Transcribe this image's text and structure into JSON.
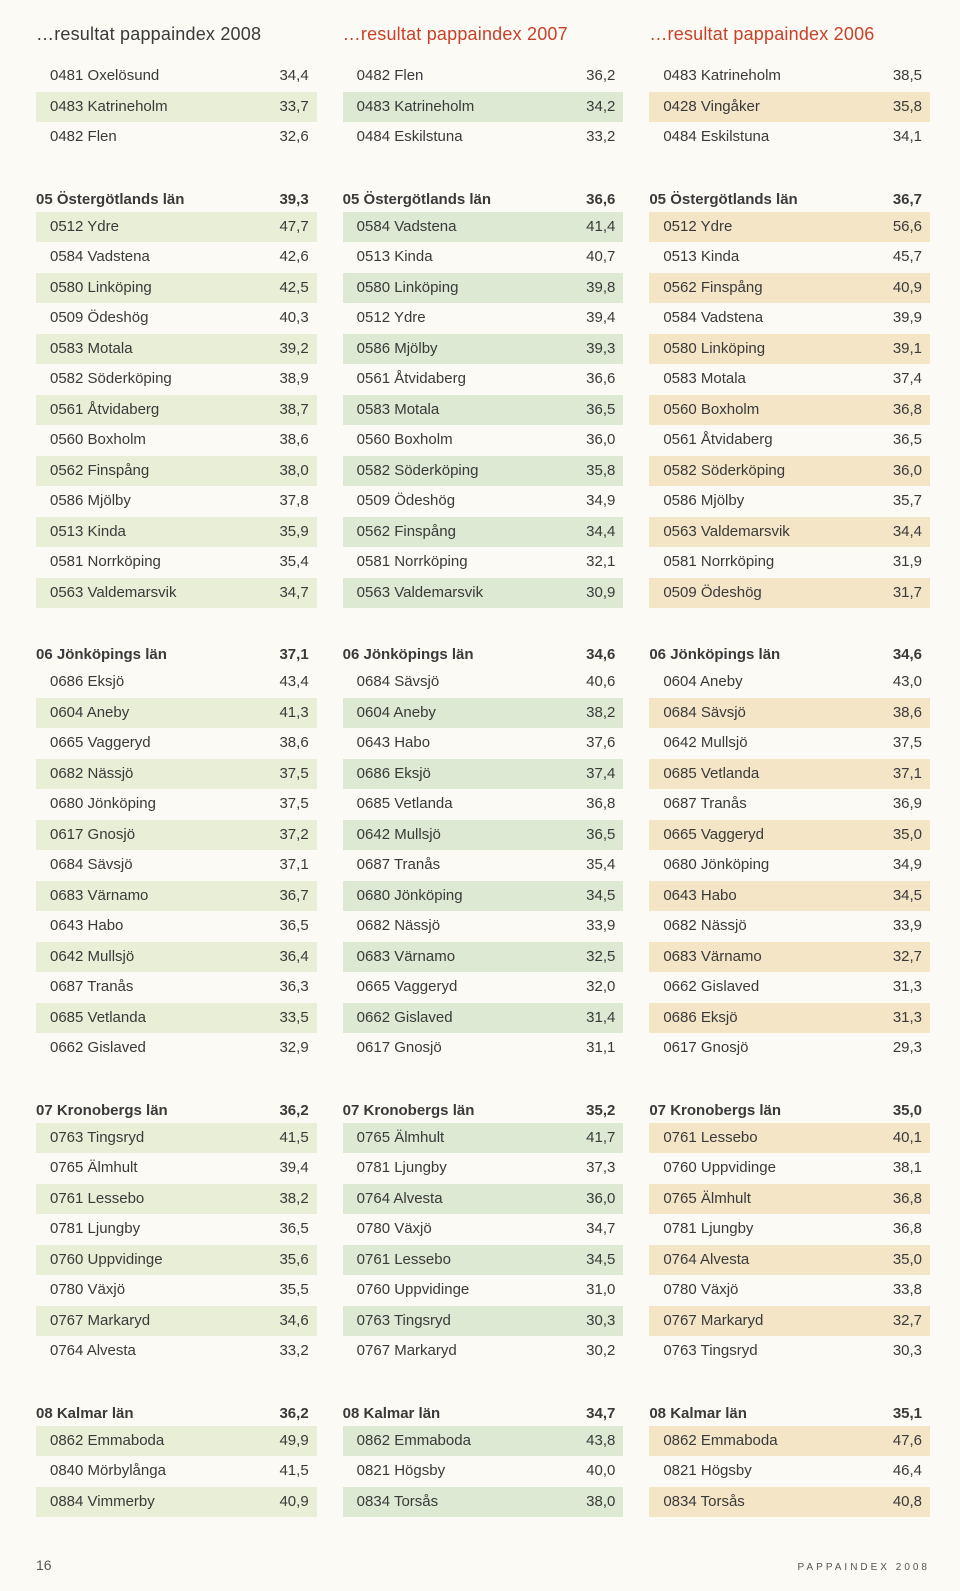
{
  "footer": {
    "page": "16",
    "caption": "pappaindex 2008"
  },
  "columns": [
    {
      "title": "…resultat pappaindex 2008",
      "titleColor": "",
      "blocks": [
        {
          "header": null,
          "rows": [
            {
              "label": "0481 Oxelösund",
              "val": "34,4"
            },
            {
              "label": "0483 Katrineholm",
              "val": "33,7"
            },
            {
              "label": "0482 Flen",
              "val": "32,6"
            }
          ]
        },
        {
          "gap": true
        },
        {
          "header": {
            "label": "05 Östergötlands län",
            "val": "39,3"
          },
          "rows": [
            {
              "label": "0512 Ydre",
              "val": "47,7"
            },
            {
              "label": "0584 Vadstena",
              "val": "42,6"
            },
            {
              "label": "0580 Linköping",
              "val": "42,5"
            },
            {
              "label": "0509 Ödeshög",
              "val": "40,3"
            },
            {
              "label": "0583 Motala",
              "val": "39,2"
            },
            {
              "label": "0582 Söderköping",
              "val": "38,9"
            },
            {
              "label": "0561 Åtvidaberg",
              "val": "38,7"
            },
            {
              "label": "0560 Boxholm",
              "val": "38,6"
            },
            {
              "label": "0562 Finspång",
              "val": "38,0"
            },
            {
              "label": "0586 Mjölby",
              "val": "37,8"
            },
            {
              "label": "0513 Kinda",
              "val": "35,9"
            },
            {
              "label": "0581 Norrköping",
              "val": "35,4"
            },
            {
              "label": "0563 Valdemarsvik",
              "val": "34,7"
            }
          ]
        },
        {
          "gap": true
        },
        {
          "header": {
            "label": "06 Jönköpings län",
            "val": "37,1"
          },
          "rows": [
            {
              "label": "0686 Eksjö",
              "val": "43,4"
            },
            {
              "label": "0604 Aneby",
              "val": "41,3"
            },
            {
              "label": "0665 Vaggeryd",
              "val": "38,6"
            },
            {
              "label": "0682 Nässjö",
              "val": "37,5"
            },
            {
              "label": "0680 Jönköping",
              "val": "37,5"
            },
            {
              "label": "0617 Gnosjö",
              "val": "37,2"
            },
            {
              "label": "0684 Sävsjö",
              "val": "37,1"
            },
            {
              "label": "0683 Värnamo",
              "val": "36,7"
            },
            {
              "label": "0643 Habo",
              "val": "36,5"
            },
            {
              "label": "0642 Mullsjö",
              "val": "36,4"
            },
            {
              "label": "0687 Tranås",
              "val": "36,3"
            },
            {
              "label": "0685 Vetlanda",
              "val": "33,5"
            },
            {
              "label": "0662 Gislaved",
              "val": "32,9"
            }
          ]
        },
        {
          "gap": true
        },
        {
          "header": {
            "label": "07 Kronobergs län",
            "val": "36,2"
          },
          "rows": [
            {
              "label": "0763 Tingsryd",
              "val": "41,5"
            },
            {
              "label": "0765 Älmhult",
              "val": "39,4"
            },
            {
              "label": "0761 Lessebo",
              "val": "38,2"
            },
            {
              "label": "0781 Ljungby",
              "val": "36,5"
            },
            {
              "label": "0760 Uppvidinge",
              "val": "35,6"
            },
            {
              "label": "0780 Växjö",
              "val": "35,5"
            },
            {
              "label": "0767 Markaryd",
              "val": "34,6"
            },
            {
              "label": "0764 Alvesta",
              "val": "33,2"
            }
          ]
        },
        {
          "gap": true
        },
        {
          "header": {
            "label": "08 Kalmar län",
            "val": "36,2"
          },
          "rows": [
            {
              "label": "0862 Emmaboda",
              "val": "49,9"
            },
            {
              "label": "0840 Mörbylånga",
              "val": "41,5"
            },
            {
              "label": "0884 Vimmerby",
              "val": "40,9"
            }
          ]
        }
      ]
    },
    {
      "title": "…resultat pappaindex 2007",
      "titleColor": "red",
      "blocks": [
        {
          "header": null,
          "rows": [
            {
              "label": "0482 Flen",
              "val": "36,2"
            },
            {
              "label": "0483 Katrineholm",
              "val": "34,2"
            },
            {
              "label": "0484 Eskilstuna",
              "val": "33,2"
            }
          ]
        },
        {
          "gap": true
        },
        {
          "header": {
            "label": "05 Östergötlands län",
            "val": "36,6"
          },
          "rows": [
            {
              "label": "0584 Vadstena",
              "val": "41,4"
            },
            {
              "label": "0513 Kinda",
              "val": "40,7"
            },
            {
              "label": "0580 Linköping",
              "val": "39,8"
            },
            {
              "label": "0512 Ydre",
              "val": "39,4"
            },
            {
              "label": "0586 Mjölby",
              "val": "39,3"
            },
            {
              "label": "0561 Åtvidaberg",
              "val": "36,6"
            },
            {
              "label": "0583 Motala",
              "val": "36,5"
            },
            {
              "label": "0560 Boxholm",
              "val": "36,0"
            },
            {
              "label": "0582 Söderköping",
              "val": "35,8"
            },
            {
              "label": "0509 Ödeshög",
              "val": "34,9"
            },
            {
              "label": "0562 Finspång",
              "val": "34,4"
            },
            {
              "label": "0581 Norrköping",
              "val": "32,1"
            },
            {
              "label": "0563 Valdemarsvik",
              "val": "30,9"
            }
          ]
        },
        {
          "gap": true
        },
        {
          "header": {
            "label": "06 Jönköpings län",
            "val": "34,6"
          },
          "rows": [
            {
              "label": "0684 Sävsjö",
              "val": "40,6"
            },
            {
              "label": "0604 Aneby",
              "val": "38,2"
            },
            {
              "label": "0643 Habo",
              "val": "37,6"
            },
            {
              "label": "0686 Eksjö",
              "val": "37,4"
            },
            {
              "label": "0685 Vetlanda",
              "val": "36,8"
            },
            {
              "label": "0642 Mullsjö",
              "val": "36,5"
            },
            {
              "label": "0687 Tranås",
              "val": "35,4"
            },
            {
              "label": "0680 Jönköping",
              "val": "34,5"
            },
            {
              "label": "0682 Nässjö",
              "val": "33,9"
            },
            {
              "label": "0683 Värnamo",
              "val": "32,5"
            },
            {
              "label": "0665 Vaggeryd",
              "val": "32,0"
            },
            {
              "label": "0662 Gislaved",
              "val": "31,4"
            },
            {
              "label": "0617 Gnosjö",
              "val": "31,1"
            }
          ]
        },
        {
          "gap": true
        },
        {
          "header": {
            "label": "07 Kronobergs län",
            "val": "35,2"
          },
          "rows": [
            {
              "label": "0765 Älmhult",
              "val": "41,7"
            },
            {
              "label": "0781 Ljungby",
              "val": "37,3"
            },
            {
              "label": "0764 Alvesta",
              "val": "36,0"
            },
            {
              "label": "0780 Växjö",
              "val": "34,7"
            },
            {
              "label": "0761 Lessebo",
              "val": "34,5"
            },
            {
              "label": "0760 Uppvidinge",
              "val": "31,0"
            },
            {
              "label": "0763 Tingsryd",
              "val": "30,3"
            },
            {
              "label": "0767 Markaryd",
              "val": "30,2"
            }
          ]
        },
        {
          "gap": true
        },
        {
          "header": {
            "label": "08 Kalmar län",
            "val": "34,7"
          },
          "rows": [
            {
              "label": "0862 Emmaboda",
              "val": "43,8"
            },
            {
              "label": "0821 Högsby",
              "val": "40,0"
            },
            {
              "label": "0834 Torsås",
              "val": "38,0"
            }
          ]
        }
      ]
    },
    {
      "title": "…resultat pappaindex 2006",
      "titleColor": "red",
      "blocks": [
        {
          "header": null,
          "rows": [
            {
              "label": "0483 Katrineholm",
              "val": "38,5"
            },
            {
              "label": "0428 Vingåker",
              "val": "35,8"
            },
            {
              "label": "0484 Eskilstuna",
              "val": "34,1"
            }
          ]
        },
        {
          "gap": true
        },
        {
          "header": {
            "label": "05 Östergötlands län",
            "val": "36,7"
          },
          "rows": [
            {
              "label": "0512 Ydre",
              "val": "56,6"
            },
            {
              "label": "0513 Kinda",
              "val": "45,7"
            },
            {
              "label": "0562 Finspång",
              "val": "40,9"
            },
            {
              "label": "0584 Vadstena",
              "val": "39,9"
            },
            {
              "label": "0580 Linköping",
              "val": "39,1"
            },
            {
              "label": "0583 Motala",
              "val": "37,4"
            },
            {
              "label": "0560 Boxholm",
              "val": "36,8"
            },
            {
              "label": "0561 Åtvidaberg",
              "val": "36,5"
            },
            {
              "label": "0582 Söderköping",
              "val": "36,0"
            },
            {
              "label": "0586 Mjölby",
              "val": "35,7"
            },
            {
              "label": "0563 Valdemarsvik",
              "val": "34,4"
            },
            {
              "label": "0581 Norrköping",
              "val": "31,9"
            },
            {
              "label": "0509 Ödeshög",
              "val": "31,7"
            }
          ]
        },
        {
          "gap": true
        },
        {
          "header": {
            "label": "06 Jönköpings län",
            "val": "34,6"
          },
          "rows": [
            {
              "label": "0604 Aneby",
              "val": "43,0"
            },
            {
              "label": "0684 Sävsjö",
              "val": "38,6"
            },
            {
              "label": "0642 Mullsjö",
              "val": "37,5"
            },
            {
              "label": "0685 Vetlanda",
              "val": "37,1"
            },
            {
              "label": "0687 Tranås",
              "val": "36,9"
            },
            {
              "label": "0665 Vaggeryd",
              "val": "35,0"
            },
            {
              "label": "0680 Jönköping",
              "val": "34,9"
            },
            {
              "label": "0643 Habo",
              "val": "34,5"
            },
            {
              "label": "0682 Nässjö",
              "val": "33,9"
            },
            {
              "label": "0683 Värnamo",
              "val": "32,7"
            },
            {
              "label": "0662 Gislaved",
              "val": "31,3"
            },
            {
              "label": "0686 Eksjö",
              "val": "31,3"
            },
            {
              "label": "0617 Gnosjö",
              "val": "29,3"
            }
          ]
        },
        {
          "gap": true
        },
        {
          "header": {
            "label": "07 Kronobergs län",
            "val": "35,0"
          },
          "rows": [
            {
              "label": "0761 Lessebo",
              "val": "40,1"
            },
            {
              "label": "0760 Uppvidinge",
              "val": "38,1"
            },
            {
              "label": "0765 Älmhult",
              "val": "36,8"
            },
            {
              "label": "0781 Ljungby",
              "val": "36,8"
            },
            {
              "label": "0764 Alvesta",
              "val": "35,0"
            },
            {
              "label": "0780 Växjö",
              "val": "33,8"
            },
            {
              "label": "0767 Markaryd",
              "val": "32,7"
            },
            {
              "label": "0763 Tingsryd",
              "val": "30,3"
            }
          ]
        },
        {
          "gap": true
        },
        {
          "header": {
            "label": "08 Kalmar län",
            "val": "35,1"
          },
          "rows": [
            {
              "label": "0862 Emmaboda",
              "val": "47,6"
            },
            {
              "label": "0821 Högsby",
              "val": "46,4"
            },
            {
              "label": "0834 Torsås",
              "val": "40,8"
            }
          ]
        }
      ]
    }
  ]
}
